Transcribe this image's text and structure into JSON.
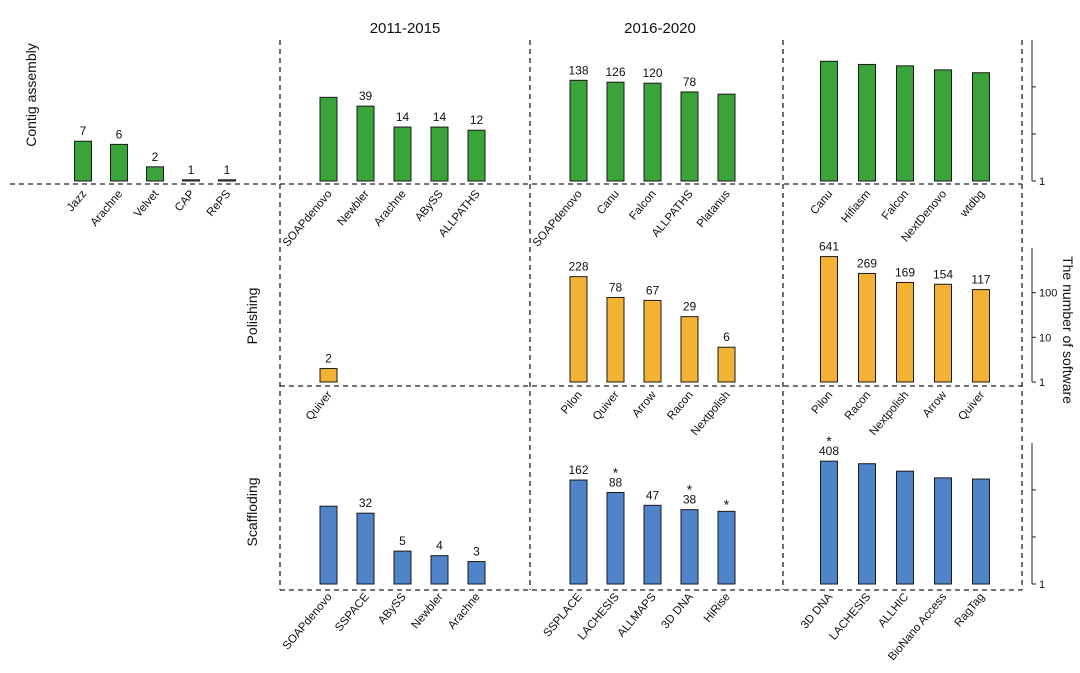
{
  "chart_data": {
    "type": "bar",
    "scale": "log",
    "periods": [
      "",
      "2011-2015",
      "2016-2020",
      ""
    ],
    "y_axis_label": "The number of software",
    "y_ticks": [
      "100",
      "10",
      "1"
    ],
    "colors": {
      "contig": "#3aa33a",
      "polishing": "#f2b233",
      "scaffolding": "#4f84c9"
    },
    "rows": [
      {
        "label": "Contig assembly",
        "key": "contig",
        "panels": [
          {
            "categories": [
              "Jazz",
              "Arachne",
              "Velvet",
              "CAP",
              "RePS"
            ],
            "values": [
              7,
              6,
              2,
              1,
              1
            ],
            "labels": [
              "7",
              "6",
              "2",
              "1",
              "1"
            ],
            "stars": [
              false,
              false,
              false,
              false,
              false
            ]
          },
          {
            "categories": [
              "SOAPdenovo",
              "Newbler",
              "Arachne",
              "ABySS",
              "ALLPATHS"
            ],
            "values": [
              60,
              39,
              14,
              14,
              12
            ],
            "labels": [
              "",
              "39",
              "14",
              "14",
              "12"
            ],
            "stars": [
              false,
              false,
              false,
              false,
              false
            ]
          },
          {
            "categories": [
              "SOAPdenovo",
              "Canu",
              "Falcon",
              "ALLPATHS",
              "Platanus"
            ],
            "values": [
              138,
              126,
              120,
              78,
              70
            ],
            "labels": [
              "138",
              "126",
              "120",
              "78",
              ""
            ],
            "stars": [
              false,
              false,
              false,
              false,
              false
            ]
          },
          {
            "categories": [
              "Canu",
              "Hifiasm",
              "Falcon",
              "NextDenovo",
              "wtdbg"
            ],
            "values": [
              350,
              300,
              280,
              230,
              200
            ],
            "labels": [
              "",
              "",
              "",
              "",
              ""
            ],
            "stars": [
              false,
              false,
              false,
              false,
              false
            ]
          }
        ]
      },
      {
        "label": "Polishing",
        "key": "polishing",
        "panels": [
          {
            "categories": [],
            "values": [],
            "labels": [],
            "stars": []
          },
          {
            "categories": [
              "Quiver"
            ],
            "values": [
              2
            ],
            "labels": [
              "2"
            ],
            "stars": [
              false
            ]
          },
          {
            "categories": [
              "Pilon",
              "Quiver",
              "Arrow",
              "Racon",
              "Nextpolish"
            ],
            "values": [
              228,
              78,
              67,
              29,
              6
            ],
            "labels": [
              "228",
              "78",
              "67",
              "29",
              "6"
            ],
            "stars": [
              false,
              false,
              false,
              false,
              false
            ]
          },
          {
            "categories": [
              "Pilon",
              "Racon",
              "Nextpolish",
              "Arrow",
              "Quiver"
            ],
            "values": [
              641,
              269,
              169,
              154,
              117
            ],
            "labels": [
              "641",
              "269",
              "169",
              "154",
              "117"
            ],
            "stars": [
              false,
              false,
              false,
              false,
              false
            ]
          }
        ]
      },
      {
        "label": "Scaffloding",
        "key": "scaffolding",
        "panels": [
          {
            "categories": [],
            "values": [],
            "labels": [],
            "stars": []
          },
          {
            "categories": [
              "SOAPdenovo",
              "SSPACE",
              "ABySS",
              "Newbler",
              "Arachne"
            ],
            "values": [
              45,
              32,
              5,
              4,
              3
            ],
            "labels": [
              "",
              "32",
              "5",
              "4",
              "3"
            ],
            "stars": [
              false,
              false,
              false,
              false,
              false
            ]
          },
          {
            "categories": [
              "SSPLACE",
              "LACHESIS",
              "ALLMAPS",
              "3D DNA",
              "HiRise"
            ],
            "values": [
              162,
              88,
              47,
              38,
              35
            ],
            "labels": [
              "162",
              "88",
              "47",
              "38",
              ""
            ],
            "stars": [
              false,
              true,
              false,
              true,
              true
            ]
          },
          {
            "categories": [
              "3D DNA",
              "LACHESIS",
              "ALLHIC",
              "BioNano Access",
              "RagTag"
            ],
            "values": [
              408,
              360,
              250,
              180,
              170
            ],
            "labels": [
              "408",
              "",
              "",
              "",
              ""
            ],
            "stars": [
              true,
              false,
              false,
              false,
              false
            ]
          }
        ]
      }
    ]
  }
}
